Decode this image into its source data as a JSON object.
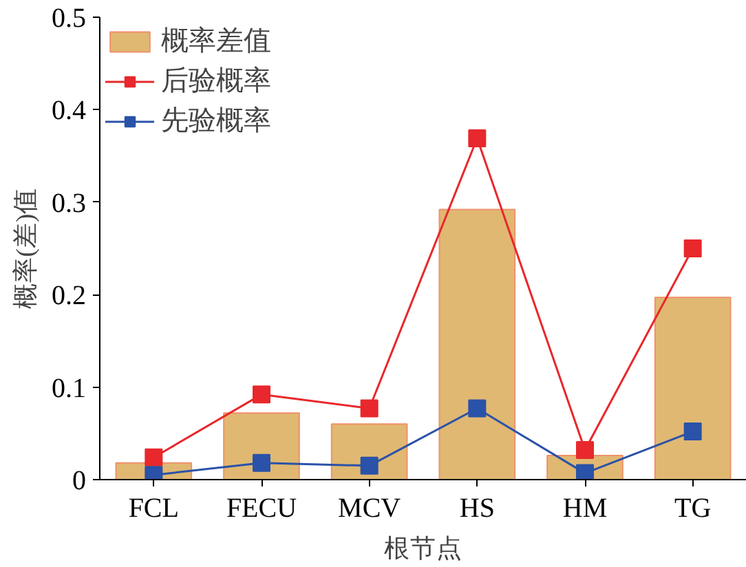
{
  "chart_data": {
    "type": "bar",
    "xlabel": "根节点",
    "ylabel": "概率(差)值",
    "categories": [
      "FCL",
      "FECU",
      "MCV",
      "HS",
      "HM",
      "TG"
    ],
    "ylim": [
      0,
      0.5
    ],
    "yticks": [
      {
        "value": 0,
        "label": "0"
      },
      0.1,
      0.2,
      0.3,
      0.4,
      0.5
    ],
    "legend": "top left",
    "grid": false,
    "series": [
      {
        "name": "概率差值",
        "color": "#e0b872",
        "values": [
          0.018,
          0.072,
          0.06,
          0.292,
          0.026,
          0.197
        ]
      },
      {
        "name": "后验概率",
        "type": "line",
        "color": "#e8282c",
        "marker": "square",
        "values": [
          0.024,
          0.092,
          0.077,
          0.369,
          0.032,
          0.25
        ]
      },
      {
        "name": "先验概率",
        "type": "line",
        "color": "#2a52a8",
        "marker": "square",
        "values": [
          0.005,
          0.018,
          0.015,
          0.077,
          0.007,
          0.052
        ]
      }
    ]
  }
}
